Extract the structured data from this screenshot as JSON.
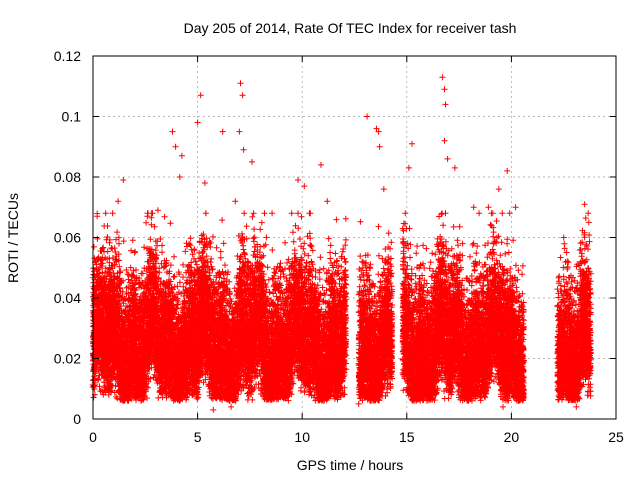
{
  "chart_data": {
    "type": "scatter",
    "title": "Day 205 of 2014, Rate Of TEC Index for receiver tash",
    "xlabel": "GPS time / hours",
    "ylabel": "ROTI / TECUs",
    "xlim": [
      0,
      25
    ],
    "ylim": [
      0,
      0.12
    ],
    "xticks": [
      0,
      5,
      10,
      15,
      20,
      25
    ],
    "xtick_labels": [
      "0",
      "5",
      "10",
      "15",
      "20",
      "25"
    ],
    "yticks": [
      0,
      0.02,
      0.04,
      0.06,
      0.08,
      0.1,
      0.12
    ],
    "ytick_labels": [
      "0",
      "0.02",
      "0.04",
      "0.06",
      "0.08",
      "0.1",
      "0.12"
    ],
    "grid": true,
    "marker": "+",
    "color": "#ff0000",
    "series": [
      {
        "name": "ROTI",
        "data_segments": [
          {
            "x_start": 0.0,
            "x_end": 12.1
          },
          {
            "x_start": 12.7,
            "x_end": 14.3
          },
          {
            "x_start": 14.8,
            "x_end": 20.6
          },
          {
            "x_start": 22.2,
            "x_end": 23.8
          }
        ],
        "typical_range": [
          0.005,
          0.06
        ],
        "points": [
          [
            0.2,
            0.067
          ],
          [
            1.2,
            0.072
          ],
          [
            1.45,
            0.079
          ],
          [
            2.6,
            0.067
          ],
          [
            3.1,
            0.069
          ],
          [
            3.8,
            0.095
          ],
          [
            3.95,
            0.09
          ],
          [
            4.25,
            0.087
          ],
          [
            4.15,
            0.08
          ],
          [
            5.0,
            0.098
          ],
          [
            5.15,
            0.107
          ],
          [
            5.35,
            0.078
          ],
          [
            6.2,
            0.095
          ],
          [
            6.8,
            0.072
          ],
          [
            7.05,
            0.111
          ],
          [
            7.15,
            0.107
          ],
          [
            7.0,
            0.095
          ],
          [
            7.2,
            0.089
          ],
          [
            7.6,
            0.085
          ],
          [
            8.2,
            0.068
          ],
          [
            9.8,
            0.079
          ],
          [
            10.1,
            0.077
          ],
          [
            10.9,
            0.084
          ],
          [
            11.2,
            0.072
          ],
          [
            13.1,
            0.1
          ],
          [
            13.55,
            0.096
          ],
          [
            13.65,
            0.095
          ],
          [
            13.7,
            0.09
          ],
          [
            13.9,
            0.076
          ],
          [
            15.25,
            0.091
          ],
          [
            15.1,
            0.083
          ],
          [
            16.7,
            0.113
          ],
          [
            16.8,
            0.109
          ],
          [
            16.85,
            0.104
          ],
          [
            16.8,
            0.092
          ],
          [
            16.95,
            0.086
          ],
          [
            17.3,
            0.083
          ],
          [
            18.2,
            0.07
          ],
          [
            18.9,
            0.07
          ],
          [
            19.4,
            0.076
          ],
          [
            19.8,
            0.082
          ],
          [
            20.2,
            0.07
          ],
          [
            23.5,
            0.071
          ],
          [
            23.7,
            0.065
          ],
          [
            22.5,
            0.06
          ],
          [
            5.75,
            0.003
          ],
          [
            6.6,
            0.004
          ],
          [
            12.7,
            0.005
          ],
          [
            19.6,
            0.004
          ],
          [
            23.1,
            0.004
          ]
        ]
      }
    ]
  }
}
